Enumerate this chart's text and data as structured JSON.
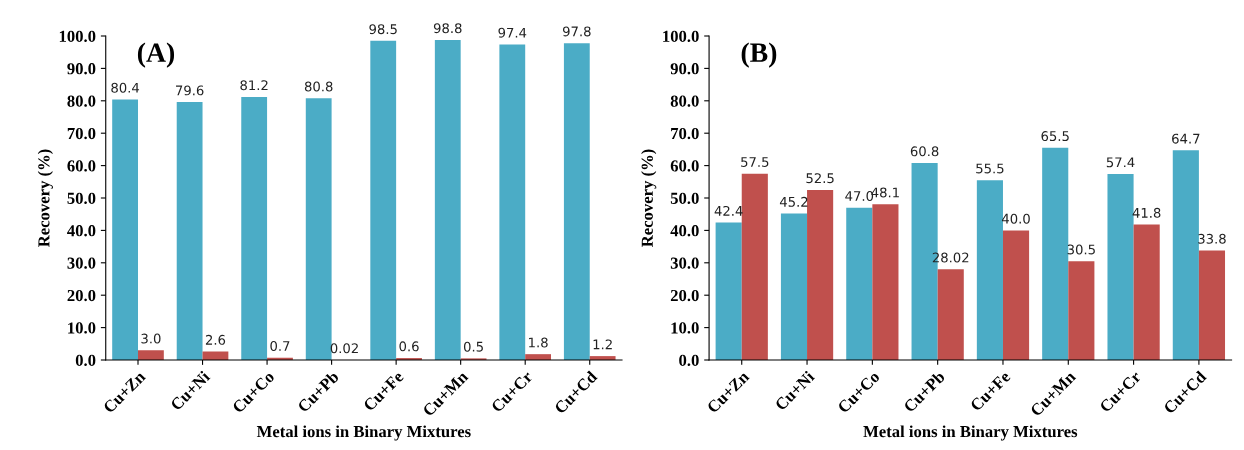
{
  "chart_data": [
    {
      "type": "bar",
      "title": "(A)",
      "xlabel": "Metal ions in Binary Mixtures",
      "ylabel": "Recovery (%)",
      "categories": [
        "Cu+Zn",
        "Cu+Ni",
        "Cu+Co",
        "Cu+Pb",
        "Cu+Fe",
        "Cu+Mn",
        "Cu+Cr",
        "Cu+Cd"
      ],
      "series": [
        {
          "color": "#4bacc6",
          "values": [
            80.4,
            79.6,
            81.2,
            80.8,
            98.5,
            98.8,
            97.4,
            97.8
          ],
          "value_labels": [
            "80.4",
            "79.6",
            "81.2",
            "80.8",
            "98.5",
            "98.8",
            "97.4",
            "97.8"
          ]
        },
        {
          "color": "#c0504d",
          "values": [
            3.0,
            2.6,
            0.7,
            0.02,
            0.6,
            0.5,
            1.8,
            1.2
          ],
          "value_labels": [
            "3.0",
            "2.6",
            "0.7",
            "0.02",
            "0.6",
            "0.5",
            "1.8",
            "1.2"
          ]
        }
      ],
      "ylim": [
        0,
        100
      ],
      "yticks": [
        {
          "value": 0,
          "label": "0.0"
        },
        {
          "value": 10,
          "label": "10.0"
        },
        {
          "value": 20,
          "label": "20.0"
        },
        {
          "value": 30,
          "label": "30.0"
        },
        {
          "value": 40,
          "label": "40.0"
        },
        {
          "value": 50,
          "label": "50.0"
        },
        {
          "value": 60,
          "label": "60.0"
        },
        {
          "value": 70,
          "label": "70.0"
        },
        {
          "value": 80,
          "label": "80.0"
        },
        {
          "value": 90,
          "label": "90.0"
        },
        {
          "value": 100,
          "label": "100.0"
        }
      ],
      "grid": false
    },
    {
      "type": "bar",
      "title": "(B)",
      "xlabel": "Metal ions in Binary Mixtures",
      "ylabel": "Recovery (%)",
      "categories": [
        "Cu+Zn",
        "Cu+Ni",
        "Cu+Co",
        "Cu+Pb",
        "Cu+Fe",
        "Cu+Mn",
        "Cu+Cr",
        "Cu+Cd"
      ],
      "series": [
        {
          "color": "#4bacc6",
          "values": [
            42.4,
            45.2,
            47.0,
            60.8,
            55.5,
            65.5,
            57.4,
            64.7
          ],
          "value_labels": [
            "42.4",
            "45.2",
            "47.0",
            "60.8",
            "55.5",
            "65.5",
            "57.4",
            "64.7"
          ]
        },
        {
          "color": "#c0504d",
          "values": [
            57.5,
            52.5,
            48.1,
            28.02,
            40.0,
            30.5,
            41.8,
            33.8
          ],
          "value_labels": [
            "57.5",
            "52.5",
            "48.1",
            "28.02",
            "40.0",
            "30.5",
            "41.8",
            "33.8"
          ]
        }
      ],
      "ylim": [
        0,
        100
      ],
      "yticks": [
        {
          "value": 0,
          "label": "0.0"
        },
        {
          "value": 10,
          "label": "10.0"
        },
        {
          "value": 20,
          "label": "20.0"
        },
        {
          "value": 30,
          "label": "30.0"
        },
        {
          "value": 40,
          "label": "40.0"
        },
        {
          "value": 50,
          "label": "50.0"
        },
        {
          "value": 60,
          "label": "60.0"
        },
        {
          "value": 70,
          "label": "70.0"
        },
        {
          "value": 80,
          "label": "80.0"
        },
        {
          "value": 90,
          "label": "90.0"
        },
        {
          "value": 100,
          "label": "100.0"
        }
      ],
      "grid": false
    }
  ]
}
